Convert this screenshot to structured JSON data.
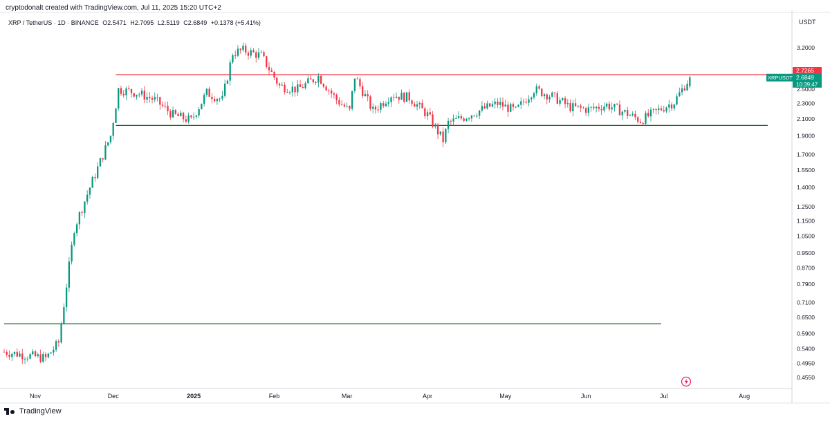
{
  "header": {
    "credit": "cryptodonalt created with TradingView.com, Jul 11, 2025 15:20 UTC+2"
  },
  "legend": {
    "symbol": "XRP / TetherUS · 1D · BINANCE",
    "open": "O2.5471",
    "high": "H2.7095",
    "low": "L2.5119",
    "close": "C2.6849",
    "change": "+0.1378 (+5.41%)"
  },
  "footer": {
    "brand": "TradingView"
  },
  "chart_data": {
    "type": "candlestick",
    "symbol": "XRPUSDT",
    "y_scale": "log",
    "y_unit": "USDT",
    "ylim": [
      0.43,
      3.6
    ],
    "y_ticks": [
      "3.2000",
      "2.5000",
      "2.3000",
      "2.1000",
      "1.9000",
      "1.7000",
      "1.5500",
      "1.4000",
      "1.2500",
      "1.1500",
      "1.0500",
      "0.9500",
      "0.8700",
      "0.7900",
      "0.7100",
      "0.6500",
      "0.5900",
      "0.5400",
      "0.4950",
      "0.4550"
    ],
    "x_ticks": [
      "Nov",
      "Dec",
      "2025",
      "Feb",
      "Mar",
      "Apr",
      "May",
      "Jun",
      "Jul",
      "Aug"
    ],
    "x_tick_dates": [
      "2024-11-01",
      "2024-12-01",
      "2025-01-01",
      "2025-02-01",
      "2025-03-01",
      "2025-04-01",
      "2025-05-01",
      "2025-06-01",
      "2025-07-01",
      "2025-08-01"
    ],
    "x_range": [
      "2024-10-20",
      "2025-08-18"
    ],
    "horizontal_lines": [
      {
        "value": 2.7265,
        "color": "#f23645",
        "from": "2024-12-02",
        "to": "2025-08-10"
      },
      {
        "value": 2.02,
        "color": "#1b5e20",
        "from": "2024-12-02",
        "to": "2025-08-10"
      },
      {
        "value": 0.625,
        "color": "#1b5e20",
        "from": "2024-10-20",
        "to": "2025-06-30"
      }
    ],
    "price_labels": [
      {
        "text": "2.7265",
        "value": 2.7265,
        "color": "#f23645"
      },
      {
        "text": "2.6849",
        "value": 2.6849,
        "color": "#089981",
        "symbol_tag": "XRPUSDT",
        "countdown": "10:39:47"
      }
    ],
    "colors": {
      "up": "#089981",
      "down": "#f23645"
    },
    "candles_anchor_dates": [
      "2024-10-20",
      "2024-11-05",
      "2024-11-10",
      "2024-11-16",
      "2024-11-22",
      "2024-11-30",
      "2024-12-03",
      "2024-12-10",
      "2024-12-17",
      "2024-12-24",
      "2024-12-31",
      "2025-01-06",
      "2025-01-12",
      "2025-01-16",
      "2025-01-20",
      "2025-01-27",
      "2025-02-03",
      "2025-02-10",
      "2025-02-18",
      "2025-02-25",
      "2025-03-02",
      "2025-03-04",
      "2025-03-11",
      "2025-03-18",
      "2025-03-25",
      "2025-04-01",
      "2025-04-07",
      "2025-04-09",
      "2025-04-15",
      "2025-04-22",
      "2025-04-28",
      "2025-05-05",
      "2025-05-12",
      "2025-05-19",
      "2025-05-26",
      "2025-06-02",
      "2025-06-09",
      "2025-06-16",
      "2025-06-22",
      "2025-06-30",
      "2025-07-05",
      "2025-07-11"
    ],
    "candles_anchor_closes": [
      0.53,
      0.51,
      0.56,
      1.1,
      1.4,
      1.9,
      2.5,
      2.45,
      2.35,
      2.15,
      2.08,
      2.45,
      2.35,
      3.1,
      3.15,
      3.05,
      2.55,
      2.5,
      2.7,
      2.35,
      2.2,
      2.7,
      2.2,
      2.42,
      2.38,
      2.15,
      1.85,
      2.05,
      2.12,
      2.22,
      2.3,
      2.2,
      2.5,
      2.4,
      2.25,
      2.22,
      2.28,
      2.18,
      2.08,
      2.23,
      2.32,
      2.6849
    ]
  }
}
